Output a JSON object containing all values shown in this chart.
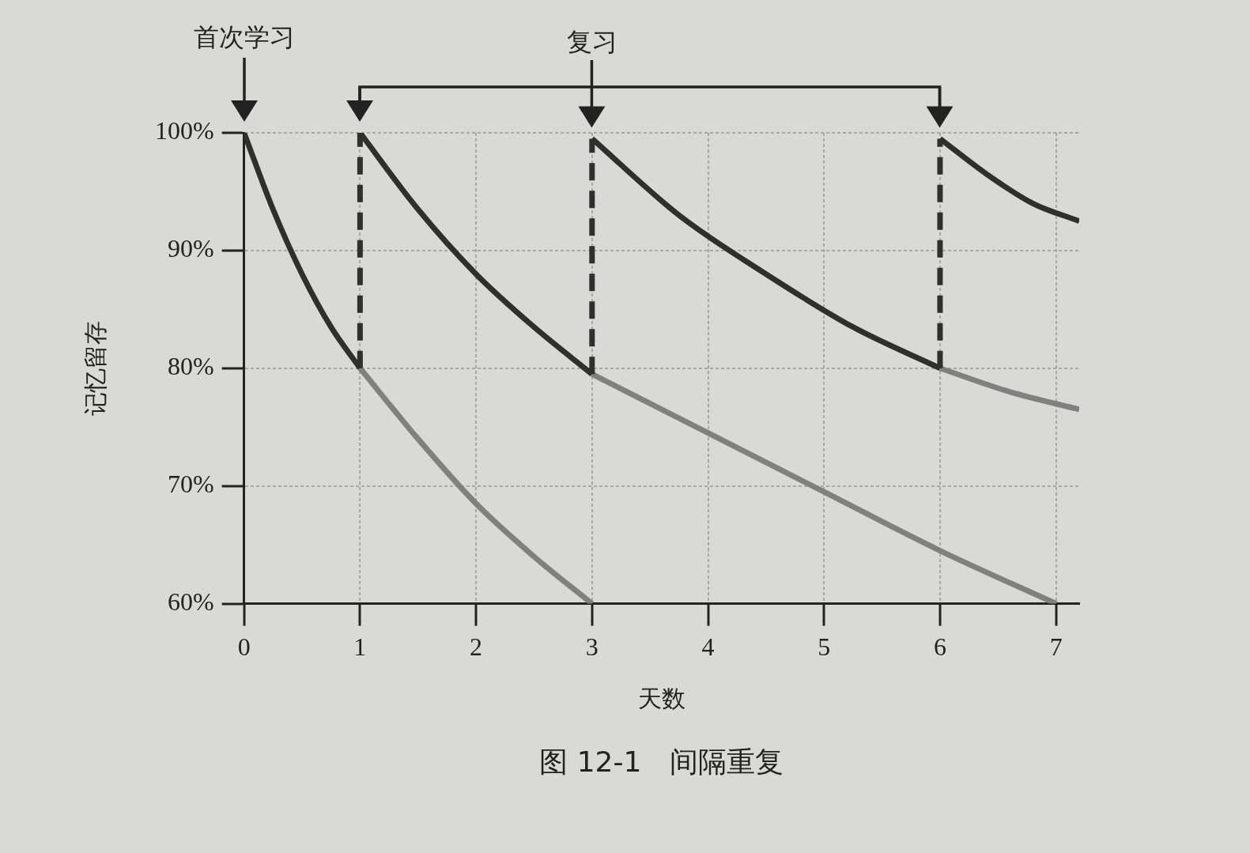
{
  "chart_data": {
    "type": "line",
    "xlabel": "天数",
    "ylabel": "记忆留存",
    "annotations": [
      "首次学习",
      "复习",
      "图 12-1　间隔重复"
    ],
    "xlim": [
      0,
      7.2
    ],
    "xticks": [
      0,
      1,
      2,
      3,
      4,
      5,
      6,
      7
    ],
    "ylim": [
      60,
      100
    ],
    "yticks": [
      {
        "value": 60,
        "label": "60%"
      },
      {
        "value": 70,
        "label": "70%"
      },
      {
        "value": 80,
        "label": "80%"
      },
      {
        "value": 90,
        "label": "90%"
      },
      {
        "value": 100,
        "label": "100%"
      }
    ],
    "grid": true,
    "legend": false,
    "marker": "none",
    "series": [
      {
        "color": "#2f2f2f",
        "x": [
          0,
          0.25,
          0.5,
          0.75,
          1
        ],
        "values": [
          100,
          93.5,
          88,
          83.5,
          80
        ]
      },
      {
        "color": "#2f2f2f",
        "line_style": "dashed",
        "x": [
          1,
          1
        ],
        "values": [
          80,
          100
        ]
      },
      {
        "color": "#2f2f2f",
        "x": [
          1,
          1.5,
          2,
          2.5,
          3
        ],
        "values": [
          100,
          93.5,
          88,
          83.5,
          79.5
        ]
      },
      {
        "color": "#2f2f2f",
        "line_style": "dashed",
        "x": [
          3,
          3
        ],
        "values": [
          79.5,
          99.5
        ]
      },
      {
        "color": "#2f2f2f",
        "x": [
          3,
          3.75,
          4.5,
          5.25,
          6
        ],
        "values": [
          99.5,
          93,
          88,
          83.5,
          80
        ]
      },
      {
        "color": "#2f2f2f",
        "line_style": "dashed",
        "x": [
          6,
          6
        ],
        "values": [
          80,
          99.5
        ]
      },
      {
        "color": "#2f2f2f",
        "x": [
          6,
          6.4,
          6.8,
          7.2
        ],
        "values": [
          99.5,
          96.5,
          94,
          92.5
        ]
      },
      {
        "color": "#808080",
        "x": [
          1,
          1.5,
          2,
          2.5,
          3
        ],
        "values": [
          80,
          74,
          68.5,
          64,
          60
        ]
      },
      {
        "color": "#808080",
        "x": [
          3,
          4,
          5,
          6,
          7
        ],
        "values": [
          79.5,
          74.5,
          69.5,
          64.5,
          60
        ]
      },
      {
        "color": "#808080",
        "x": [
          6,
          6.6,
          7.2
        ],
        "values": [
          80,
          78,
          76.5
        ]
      }
    ]
  }
}
